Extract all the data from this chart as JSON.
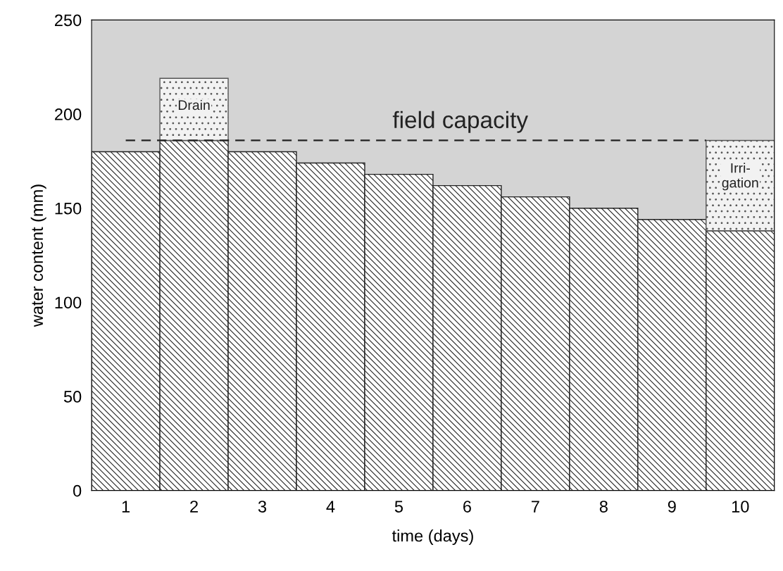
{
  "chart_data": {
    "type": "bar",
    "stacked": true,
    "xlabel": "time (days)",
    "ylabel": "water content (mm)",
    "categories": [
      "1",
      "2",
      "3",
      "4",
      "5",
      "6",
      "7",
      "8",
      "9",
      "10"
    ],
    "series": [
      {
        "color": "#222222",
        "values": [
          180,
          186,
          180,
          174,
          168,
          162,
          156,
          150,
          144,
          138
        ]
      },
      {
        "name": "Drain",
        "color": "#555555",
        "values": [
          null,
          33,
          null,
          null,
          null,
          null,
          null,
          null,
          null,
          null
        ]
      },
      {
        "name": "Irri-\ngation",
        "color": "#555555",
        "values": [
          null,
          null,
          null,
          null,
          null,
          null,
          null,
          null,
          null,
          48
        ]
      }
    ],
    "ylim": [
      0,
      250
    ],
    "yticks": [
      0,
      50,
      100,
      150,
      200,
      250
    ],
    "ref_lines": [
      {
        "axis": "y",
        "value": 186,
        "label": "field capacity",
        "line_style": "dashed",
        "color": "#222222"
      }
    ],
    "grid": false,
    "legend": false
  }
}
